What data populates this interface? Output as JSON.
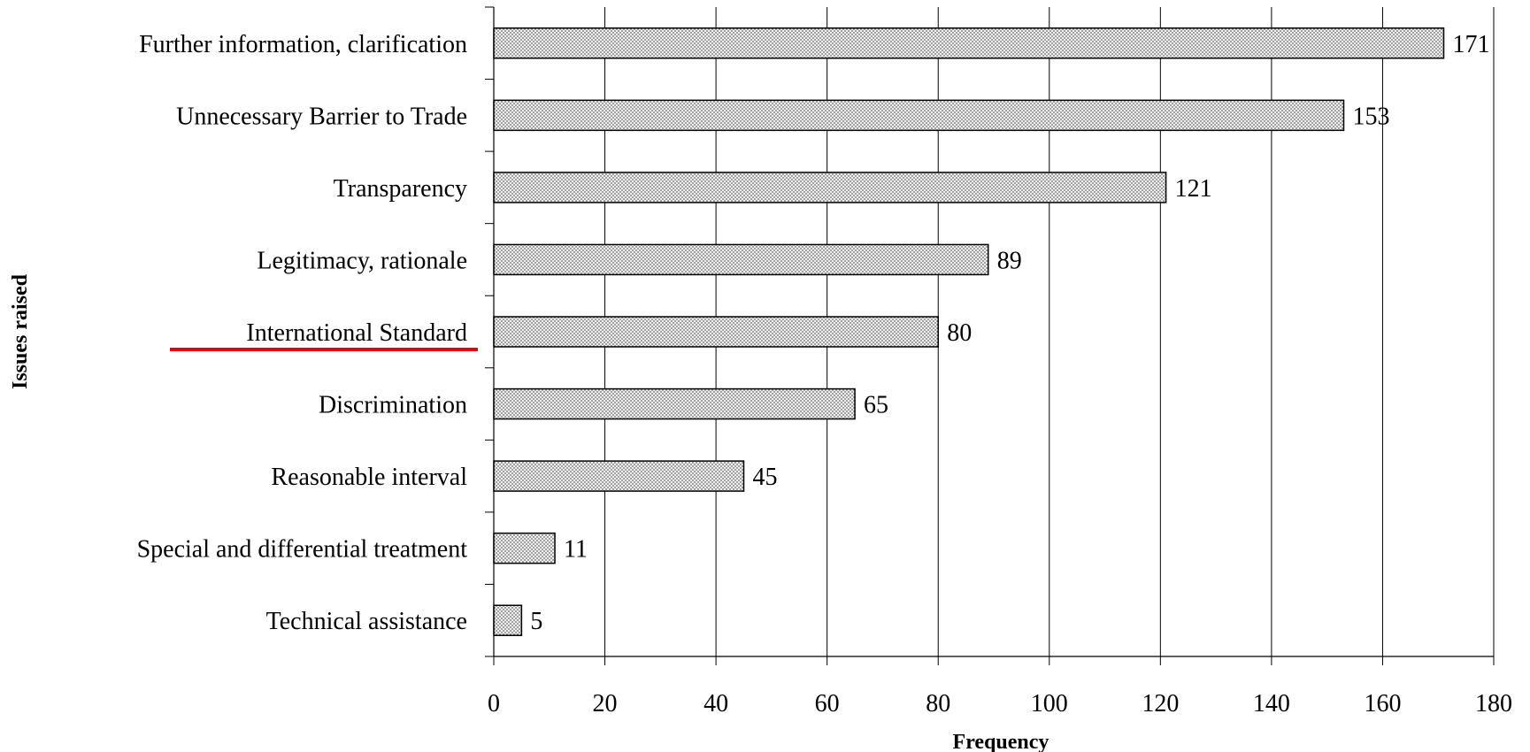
{
  "chart_data": {
    "type": "bar",
    "orientation": "horizontal",
    "categories": [
      "Further information, clarification",
      "Unnecessary Barrier to Trade",
      "Transparency",
      "Legitimacy, rationale",
      "International Standard",
      "Discrimination",
      "Reasonable interval",
      "Special and differential treatment",
      "Technical assistance"
    ],
    "values": [
      171,
      153,
      121,
      89,
      80,
      65,
      45,
      11,
      5
    ],
    "xlabel": "Frequency",
    "ylabel": "Issues raised",
    "xlim": [
      0,
      180
    ],
    "xticks": [
      0,
      20,
      40,
      60,
      80,
      100,
      120,
      140,
      160,
      180
    ],
    "grid": "vertical",
    "legend": "none",
    "highlighted_category": "International Standard",
    "colors": {
      "bar_fill": "#d9d9d9",
      "bar_stroke": "#000000",
      "grid": "#000000",
      "highlight_underline": "#e8000b"
    }
  }
}
